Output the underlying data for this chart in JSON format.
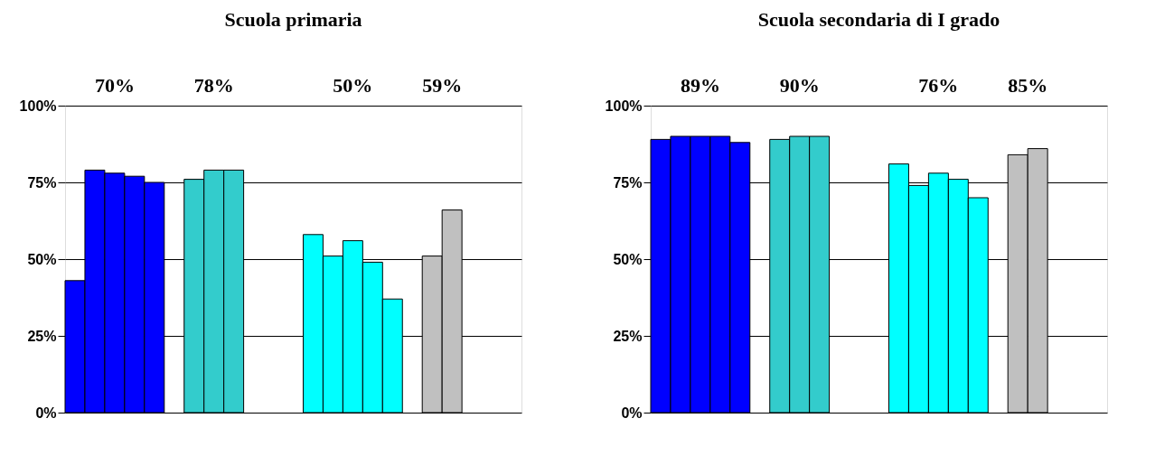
{
  "chart_data": [
    {
      "type": "bar",
      "title": "Scuola primaria",
      "categories": [
        null,
        null,
        null,
        null,
        null,
        null,
        null,
        null,
        null,
        null,
        null,
        null,
        null,
        null,
        null,
        null,
        null,
        null,
        null,
        null,
        null,
        null,
        null
      ],
      "series": [
        {
          "color": "#0000ff",
          "values": [
            43,
            79,
            78,
            77,
            75,
            null,
            null,
            null,
            null,
            null,
            null,
            null,
            null,
            null,
            null,
            null,
            null,
            null,
            null,
            null,
            null,
            null,
            null
          ]
        },
        {
          "color": "#33cccc",
          "values": [
            null,
            null,
            null,
            null,
            null,
            null,
            76,
            79,
            79,
            null,
            null,
            null,
            null,
            null,
            null,
            null,
            null,
            null,
            null,
            null,
            null,
            null,
            null
          ]
        },
        {
          "color": "#00ffff",
          "values": [
            null,
            null,
            null,
            null,
            null,
            null,
            null,
            null,
            null,
            null,
            null,
            null,
            58,
            51,
            56,
            49,
            37,
            null,
            null,
            null,
            null,
            null,
            null
          ]
        },
        {
          "color": "#c0c0c0",
          "values": [
            null,
            null,
            null,
            null,
            null,
            null,
            null,
            null,
            null,
            null,
            null,
            null,
            null,
            null,
            null,
            null,
            null,
            null,
            51,
            66,
            null,
            null,
            null
          ]
        }
      ],
      "annotations": [
        "70%",
        "78%",
        "50%",
        "59%"
      ],
      "ylim": [
        0,
        100
      ],
      "yticks": [
        {
          "value": 0,
          "label": "0%"
        },
        {
          "value": 25,
          "label": "25%"
        },
        {
          "value": 50,
          "label": "50%"
        },
        {
          "value": 75,
          "label": "75%"
        },
        {
          "value": 100,
          "label": "100%"
        }
      ],
      "grid": "y",
      "legend": false,
      "tick_labels": "y"
    },
    {
      "type": "bar",
      "title": "Scuola secondaria di I grado",
      "categories": [
        null,
        null,
        null,
        null,
        null,
        null,
        null,
        null,
        null,
        null,
        null,
        null,
        null,
        null,
        null,
        null,
        null,
        null,
        null,
        null,
        null,
        null,
        null
      ],
      "series": [
        {
          "color": "#0000ff",
          "values": [
            89,
            90,
            90,
            90,
            88,
            null,
            null,
            null,
            null,
            null,
            null,
            null,
            null,
            null,
            null,
            null,
            null,
            null,
            null,
            null,
            null,
            null,
            null
          ]
        },
        {
          "color": "#33cccc",
          "values": [
            null,
            null,
            null,
            null,
            null,
            null,
            89,
            90,
            90,
            null,
            null,
            null,
            null,
            null,
            null,
            null,
            null,
            null,
            null,
            null,
            null,
            null,
            null
          ]
        },
        {
          "color": "#00ffff",
          "values": [
            null,
            null,
            null,
            null,
            null,
            null,
            null,
            null,
            null,
            null,
            null,
            null,
            81,
            74,
            78,
            76,
            70,
            null,
            null,
            null,
            null,
            null,
            null
          ]
        },
        {
          "color": "#c0c0c0",
          "values": [
            null,
            null,
            null,
            null,
            null,
            null,
            null,
            null,
            null,
            null,
            null,
            null,
            null,
            null,
            null,
            null,
            null,
            null,
            84,
            86,
            null,
            null,
            null
          ]
        }
      ],
      "annotations": [
        "89%",
        "90%",
        "76%",
        "85%"
      ],
      "ylim": [
        0,
        100
      ],
      "yticks": [
        {
          "value": 0,
          "label": "0%"
        },
        {
          "value": 25,
          "label": "25%"
        },
        {
          "value": 50,
          "label": "50%"
        },
        {
          "value": 75,
          "label": "75%"
        },
        {
          "value": 100,
          "label": "100%"
        }
      ],
      "grid": "y",
      "legend": false,
      "tick_labels": "y"
    }
  ]
}
